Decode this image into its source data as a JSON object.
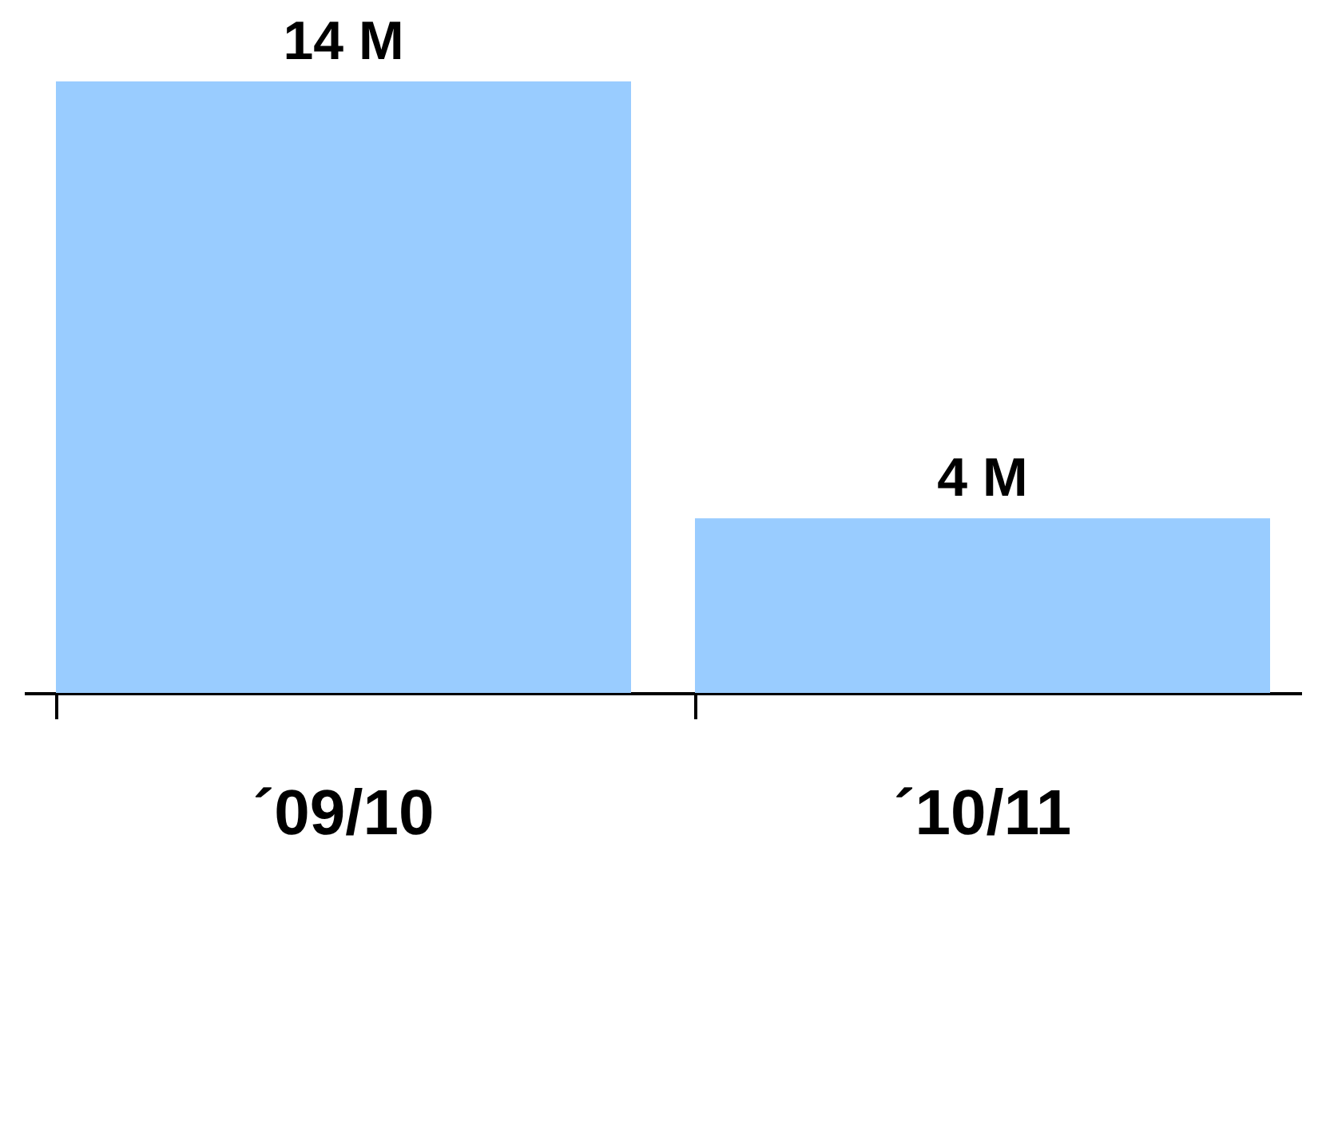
{
  "chart_data": {
    "type": "bar",
    "categories": [
      "´09/10",
      "´10/11"
    ],
    "values": [
      14,
      4
    ],
    "value_labels": [
      "14 M",
      "4 M"
    ],
    "color": "#99ccff",
    "tick_labels": "x"
  }
}
